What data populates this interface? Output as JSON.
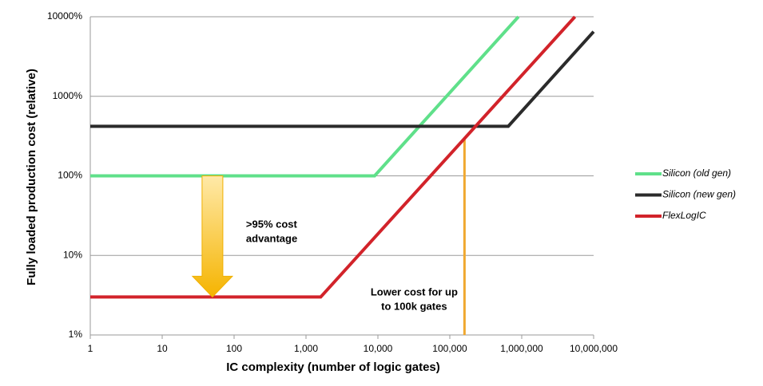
{
  "chart_data": {
    "type": "line",
    "x_label": "IC complexity (number of logic gates)",
    "y_label": "Fully loaded production cost (relative)",
    "log_x": true,
    "log_y": true,
    "grid": true,
    "legend": "right",
    "xlim": [
      1,
      10000000
    ],
    "ylim": [
      1,
      10000
    ],
    "xticks": [
      1,
      10,
      100,
      {
        "value": 1000,
        "label": "1,000"
      },
      {
        "value": 10000,
        "label": "10,000"
      },
      {
        "value": 100000,
        "label": "100,000"
      },
      {
        "value": 1000000,
        "label": "1,000,000"
      },
      {
        "value": 10000000,
        "label": "10,000,000"
      }
    ],
    "yticks": [
      {
        "value": 1,
        "label": "1%"
      },
      {
        "value": 10,
        "label": "10%"
      },
      {
        "value": 100,
        "label": "100%"
      },
      {
        "value": 1000,
        "label": "1000%"
      },
      {
        "value": 10000,
        "label": "10000%"
      }
    ],
    "series": [
      {
        "name": "Silicon (old gen)",
        "color": "#5fe08a",
        "x": [
          1,
          9000,
          900000
        ],
        "values": [
          100,
          100,
          10000
        ]
      },
      {
        "name": "Silicon (new gen)",
        "color": "#2b2b2b",
        "x": [
          1,
          650000,
          10000000
        ],
        "values": [
          420,
          420,
          6500
        ]
      },
      {
        "name": "FlexLogIC",
        "color": "#d2232a",
        "x": [
          1,
          1600,
          5500000
        ],
        "values": [
          3,
          3,
          10000
        ]
      }
    ],
    "annotations": [
      {
        "lines": [
          ">95% cost",
          "advantage"
        ],
        "color": "#c8202f",
        "arrow": {
          "x": 50,
          "from": 100,
          "to": 3
        }
      },
      {
        "lines": [
          "Lower cost for up",
          "to 100k gates"
        ],
        "color": "#c8202f",
        "vline": {
          "x": 160000,
          "color": "#f0a830"
        }
      }
    ]
  }
}
